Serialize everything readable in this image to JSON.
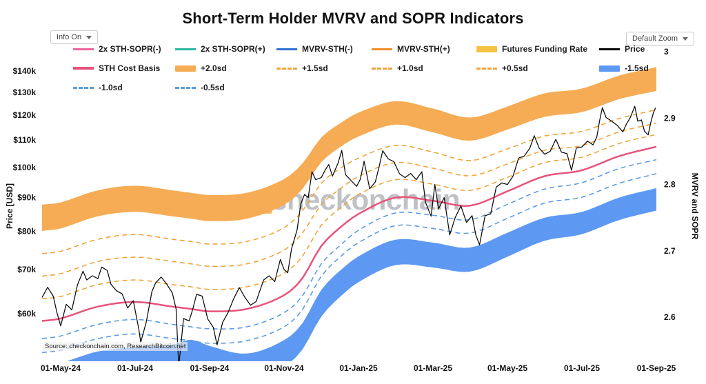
{
  "header": {
    "title": "Short-Term Holder MVRV and SOPR Indicators",
    "info_dropdown_label": "Info On",
    "zoom_dropdown_label": "Default Zoom"
  },
  "legend": {
    "items": [
      {
        "label": "2x STH-SOPR(-)",
        "color": "#F0639A",
        "swatch": "line"
      },
      {
        "label": "2x STH-SOPR(+)",
        "color": "#2BB5A0",
        "swatch": "line"
      },
      {
        "label": "MVRV-STH(-)",
        "color": "#2F6FD0",
        "swatch": "line"
      },
      {
        "label": "MVRV-STH(+)",
        "color": "#F28E2B",
        "swatch": "line"
      },
      {
        "label": "Futures Funding Rate",
        "color": "#F6C244",
        "swatch": "thick"
      },
      {
        "label": "Price",
        "color": "#000000",
        "swatch": "line"
      },
      {
        "label": "STH Cost Basis",
        "color": "#E8537A",
        "swatch": "thickline"
      },
      {
        "label": "+2.0sd",
        "color": "#F6AC55",
        "swatch": "thick"
      },
      {
        "label": "+1.5sd",
        "color": "#F0A43C",
        "swatch": "dash"
      },
      {
        "label": "+1.0sd",
        "color": "#F0A43C",
        "swatch": "dash"
      },
      {
        "label": "+0.5sd",
        "color": "#F0A43C",
        "swatch": "dash"
      },
      {
        "label": "-1.5sd",
        "color": "#5D99F2",
        "swatch": "thick"
      },
      {
        "label": "-1.0sd",
        "color": "#5D9CE0",
        "swatch": "dash"
      },
      {
        "label": "-0.5sd",
        "color": "#5D9CE0",
        "swatch": "dash"
      }
    ]
  },
  "watermark": {
    "text": "checkonchain"
  },
  "source_note": "Source: checkonchain.com, ResearchBitcoin.net",
  "chart_data": {
    "type": "line",
    "title": "Short-Term Holder MVRV and SOPR Indicators",
    "x_axis": {
      "tick_months": [
        0,
        2,
        4,
        6,
        8,
        10,
        12,
        14,
        16
      ],
      "tick_labels": [
        "01-May-24",
        "01-Jul-24",
        "01-Sep-24",
        "01-Nov-24",
        "01-Jan-25",
        "01-Mar-25",
        "01-May-25",
        "01-Jul-25",
        "01-Sep-25"
      ]
    },
    "y_left": {
      "label": "Price [USD]",
      "scale": "log",
      "tick_values": [
        60,
        70,
        80,
        90,
        100,
        110,
        120,
        130,
        140
      ],
      "tick_labels": [
        "$60k",
        "$70k",
        "$80k",
        "$90k",
        "$100k",
        "$110k",
        "$120k",
        "$130k",
        "$140k"
      ],
      "units": "USD thousands"
    },
    "y_right": {
      "label": "MVRV and SOPR",
      "scale": "linear",
      "tick_values": [
        2.6,
        2.7,
        2.8,
        2.9,
        3
      ],
      "tick_labels": [
        "2.6",
        "2.7",
        "2.8",
        "2.9",
        "3"
      ]
    },
    "sd_grid_months": [
      -0.5,
      0,
      1,
      2,
      3,
      3.5,
      4,
      5,
      6,
      6.5,
      7,
      7.5,
      8,
      9,
      10,
      11,
      12,
      13,
      14,
      15,
      16
    ],
    "series": [
      {
        "name": "+2.0sd band",
        "kind": "band",
        "color": "#F6AC55",
        "x_ref": "sd",
        "upper": [
          87.8,
          88.5,
          92.3,
          93.8,
          92.3,
          91.5,
          90.8,
          91.5,
          96,
          101.5,
          111,
          116.6,
          121.1,
          126,
          122.8,
          119,
          123.7,
          129.5,
          131.7,
          137.8,
          141.9
        ],
        "lower": [
          80.1,
          80.8,
          84.3,
          85.6,
          84.3,
          83.6,
          82.9,
          83.6,
          87.7,
          92.8,
          101.8,
          107.3,
          111.4,
          116.1,
          113,
          109.8,
          114.1,
          119.3,
          121.3,
          126.9,
          130.6
        ]
      },
      {
        "name": "-1.5sd band",
        "kind": "band",
        "color": "#5D99F2",
        "x_ref": "sd",
        "upper": [
          50,
          50.5,
          52.6,
          53.4,
          53.8,
          54.8,
          53.6,
          52.2,
          54.7,
          58.1,
          65.2,
          69.7,
          73.3,
          77.7,
          76.9,
          75.6,
          79.6,
          83.9,
          85.6,
          90,
          93
        ],
        "lower": [
          45.6,
          46,
          48,
          48.8,
          48,
          47.7,
          47.2,
          47.6,
          49.9,
          53,
          59.4,
          63.6,
          67,
          71.1,
          70.5,
          69.5,
          73.2,
          77.4,
          79.2,
          83.2,
          86
        ]
      },
      {
        "name": "+1.5sd",
        "kind": "dashed",
        "color": "#F0A43C",
        "x_ref": "sd",
        "values": [
          74,
          74.6,
          77.8,
          79.1,
          77.8,
          77.2,
          76.5,
          77.2,
          81,
          86,
          94.6,
          99.6,
          103.3,
          108,
          105.5,
          102.4,
          106.7,
          111.6,
          113.4,
          118.6,
          122.3
        ]
      },
      {
        "name": "+1.0sd",
        "kind": "dashed",
        "color": "#F0A43C",
        "x_ref": "sd",
        "values": [
          68.4,
          69,
          72,
          73.1,
          72,
          71.4,
          70.8,
          71.4,
          74.9,
          79.6,
          87.8,
          92.7,
          96.9,
          101.7,
          99.7,
          97.1,
          101.2,
          106.2,
          107.9,
          113.2,
          116.7
        ]
      },
      {
        "name": "+0.5sd",
        "kind": "dashed",
        "color": "#F0A43C",
        "x_ref": "sd",
        "values": [
          63.2,
          63.7,
          66.4,
          67.5,
          66.4,
          65.9,
          65.3,
          65.9,
          69.1,
          73.4,
          81.7,
          86.7,
          91,
          95.8,
          94.3,
          92.3,
          96.6,
          101.7,
          103.6,
          108.7,
          112.2
        ]
      },
      {
        "name": "-0.5sd",
        "kind": "dashed",
        "color": "#5D9CE0",
        "x_ref": "sd",
        "values": [
          55,
          55.5,
          57.8,
          58.8,
          57.8,
          57.3,
          56.9,
          57.3,
          60.2,
          63.9,
          71.4,
          76.1,
          80.3,
          85.3,
          84.6,
          83.3,
          87.9,
          92.7,
          94.8,
          99.6,
          102.7
        ]
      },
      {
        "name": "-1.0sd",
        "kind": "dashed",
        "color": "#5D9CE0",
        "x_ref": "sd",
        "values": [
          52.4,
          52.8,
          55,
          55.9,
          55,
          54.6,
          54.1,
          54.6,
          57.3,
          60.9,
          68.4,
          73.1,
          76.9,
          81.6,
          80.8,
          79.5,
          83.7,
          88.3,
          90.1,
          94.6,
          97.8
        ]
      },
      {
        "name": "STH Cost Basis",
        "kind": "line",
        "color": "#E8537A",
        "width": 2.5,
        "x_ref": "sd",
        "values": [
          58.5,
          59,
          61.5,
          62.5,
          61.5,
          61,
          60.5,
          61,
          64,
          68,
          76,
          81,
          85,
          90,
          89,
          87.5,
          92,
          97,
          99,
          104,
          107.5
        ]
      },
      {
        "name": "Price",
        "kind": "line",
        "color": "#0A0A0A",
        "width": 1.25,
        "x": [
          -0.5,
          -0.35,
          -0.2,
          -0.1,
          0,
          0.15,
          0.3,
          0.45,
          0.6,
          0.7,
          0.85,
          1,
          1.1,
          1.25,
          1.35,
          1.5,
          1.65,
          1.8,
          1.95,
          2.1,
          2.15,
          2.3,
          2.45,
          2.55,
          2.7,
          2.85,
          3,
          3.1,
          3.17,
          3.3,
          3.45,
          3.55,
          3.65,
          3.8,
          3.95,
          4.1,
          4.2,
          4.35,
          4.5,
          4.65,
          4.8,
          4.95,
          5.1,
          5.25,
          5.45,
          5.6,
          5.75,
          5.9,
          6,
          6.1,
          6.2,
          6.35,
          6.45,
          6.55,
          6.65,
          6.75,
          6.85,
          7,
          7.1,
          7.2,
          7.3,
          7.45,
          7.55,
          7.65,
          7.8,
          7.95,
          8.05,
          8.15,
          8.3,
          8.45,
          8.55,
          8.65,
          8.8,
          8.95,
          9.1,
          9.25,
          9.4,
          9.55,
          9.7,
          9.8,
          9.95,
          10.05,
          10.15,
          10.3,
          10.45,
          10.6,
          10.75,
          10.9,
          11.05,
          11.15,
          11.25,
          11.4,
          11.55,
          11.7,
          11.85,
          12,
          12.15,
          12.3,
          12.45,
          12.6,
          12.72,
          12.85,
          13,
          13.15,
          13.3,
          13.45,
          13.6,
          13.72,
          13.85,
          14,
          14.15,
          14.3,
          14.4,
          14.48,
          14.55,
          14.65,
          14.8,
          14.95,
          15.1,
          15.2,
          15.3,
          15.42,
          15.5,
          15.6,
          15.68,
          15.78,
          15.85,
          15.92,
          15.98
        ],
        "values": [
          63.5,
          65.8,
          63.8,
          60.2,
          57.5,
          62,
          60.8,
          66.3,
          69.6,
          67.5,
          68.5,
          67.8,
          70.6,
          69.8,
          66.5,
          65,
          64.3,
          61.2,
          62.8,
          56.8,
          54.3,
          58.3,
          64.8,
          66.8,
          68.2,
          66.5,
          64.5,
          61,
          49.8,
          59,
          58.5,
          61,
          64.2,
          63.8,
          58.9,
          57.2,
          53.8,
          58.2,
          60.3,
          63.3,
          65.7,
          63.5,
          61.8,
          62.6,
          67.5,
          68.5,
          67.1,
          72.5,
          70,
          69.2,
          75.2,
          80.4,
          88,
          91,
          90,
          98.5,
          95.8,
          96.5,
          99,
          101,
          97,
          101.5,
          106.1,
          97.5,
          95.5,
          93.6,
          96,
          102.2,
          92.8,
          95,
          100,
          106,
          103,
          102,
          97.8,
          96.5,
          97.9,
          95.8,
          98.5,
          88.5,
          84.3,
          94.2,
          86.5,
          90,
          79,
          84,
          87.4,
          82.5,
          84.5,
          79,
          76.3,
          84.5,
          85,
          93.4,
          94.7,
          94.2,
          97,
          103.3,
          104,
          106.9,
          111.7,
          107,
          104.7,
          105.8,
          110.3,
          105.5,
          104.9,
          99,
          107,
          107.4,
          109.6,
          108.2,
          111.2,
          118,
          123.2,
          119,
          117.5,
          115.8,
          113.2,
          116.5,
          119,
          123.8,
          117.5,
          118,
          113.5,
          112,
          117,
          121,
          123.2
        ]
      }
    ]
  }
}
